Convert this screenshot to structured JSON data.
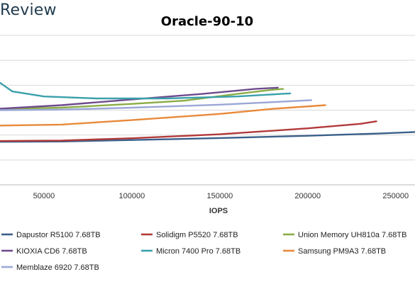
{
  "brand": "Review",
  "chart_data": {
    "type": "line",
    "title": "Oracle-90-10",
    "xlabel": "IOPS",
    "ylabel": "",
    "xlim": [
      25000,
      261000
    ],
    "ylim": [
      0,
      6
    ],
    "x_ticks": [
      50000,
      100000,
      150000,
      200000,
      250000
    ],
    "x_tick_labels": [
      "50000",
      "100000",
      "150000",
      "200000",
      "250000"
    ],
    "grid": true,
    "legend_position": "bottom",
    "series": [
      {
        "name": "Dapustor R5100 7.68TB",
        "color": "#3a5f8a",
        "points": [
          [
            25000,
            1.73
          ],
          [
            60000,
            1.74
          ],
          [
            100000,
            1.8
          ],
          [
            150000,
            1.88
          ],
          [
            200000,
            1.97
          ],
          [
            240000,
            2.06
          ],
          [
            261000,
            2.12
          ]
        ]
      },
      {
        "name": "Solidigm P5520 7.68TB",
        "color": "#b23a3a",
        "points": [
          [
            25000,
            1.76
          ],
          [
            60000,
            1.78
          ],
          [
            100000,
            1.87
          ],
          [
            150000,
            2.03
          ],
          [
            200000,
            2.27
          ],
          [
            230000,
            2.45
          ],
          [
            239000,
            2.55
          ]
        ]
      },
      {
        "name": "Union Memory UH810a 7.68TB",
        "color": "#8aac45",
        "points": [
          [
            25000,
            3.05
          ],
          [
            60000,
            3.1
          ],
          [
            100000,
            3.25
          ],
          [
            130000,
            3.38
          ],
          [
            160000,
            3.65
          ],
          [
            180000,
            3.82
          ],
          [
            186000,
            3.85
          ]
        ]
      },
      {
        "name": "KIOXIA CD6 7.68TB",
        "color": "#6e4b8e",
        "points": [
          [
            25000,
            3.06
          ],
          [
            60000,
            3.2
          ],
          [
            100000,
            3.43
          ],
          [
            140000,
            3.65
          ],
          [
            170000,
            3.85
          ],
          [
            183000,
            3.9
          ]
        ]
      },
      {
        "name": "Micron 7400 Pro 7.68TB",
        "color": "#3aa0aa",
        "points": [
          [
            25000,
            4.1
          ],
          [
            32000,
            3.75
          ],
          [
            50000,
            3.55
          ],
          [
            80000,
            3.47
          ],
          [
            120000,
            3.47
          ],
          [
            160000,
            3.55
          ],
          [
            185000,
            3.65
          ],
          [
            190000,
            3.67
          ]
        ]
      },
      {
        "name": "Samsung PM9A3 7.68TB",
        "color": "#e8893a",
        "points": [
          [
            25000,
            2.38
          ],
          [
            60000,
            2.42
          ],
          [
            100000,
            2.6
          ],
          [
            150000,
            2.85
          ],
          [
            180000,
            3.05
          ],
          [
            210000,
            3.2
          ]
        ]
      },
      {
        "name": "Memblaze 6920 7.68TB",
        "color": "#9aa7d6",
        "points": [
          [
            25000,
            3.0
          ],
          [
            60000,
            3.02
          ],
          [
            100000,
            3.1
          ],
          [
            150000,
            3.22
          ],
          [
            180000,
            3.32
          ],
          [
            202000,
            3.4
          ]
        ]
      }
    ]
  }
}
